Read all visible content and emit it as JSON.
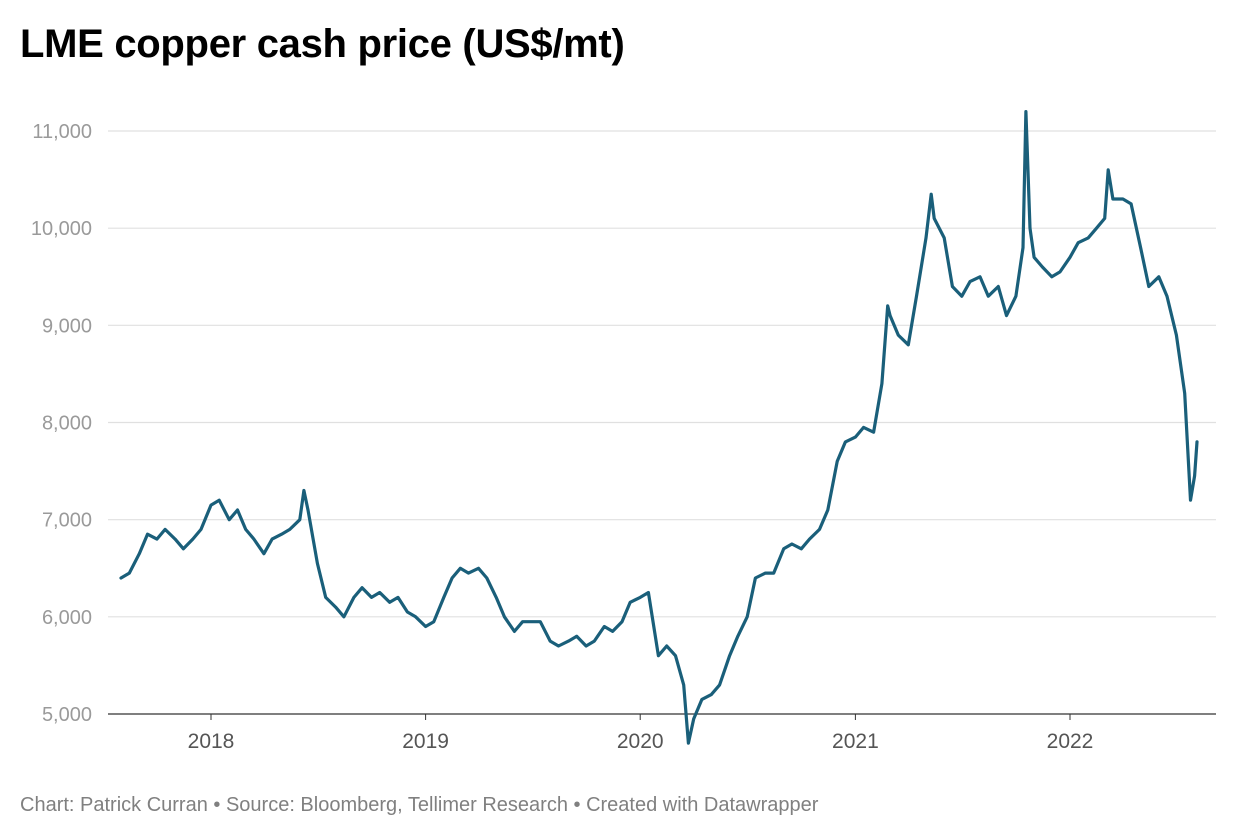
{
  "chart_data": {
    "type": "line",
    "title": "LME copper cash price (US$/mt)",
    "xlabel": "",
    "ylabel": "",
    "ylim": [
      5000,
      11000
    ],
    "y_ticks": [
      "11,000",
      "10,000",
      "9,000",
      "8,000",
      "7,000",
      "6,000",
      "5,000"
    ],
    "x_ticks": [
      "2018",
      "2019",
      "2020",
      "2021",
      "2022"
    ],
    "grid": true,
    "line_color": "#1a5f7a",
    "series": [
      {
        "x": [
          "2017-08-01",
          "2017-08-15",
          "2017-09-01",
          "2017-09-15",
          "2017-10-01",
          "2017-10-15",
          "2017-11-01",
          "2017-11-15",
          "2017-12-01",
          "2017-12-15",
          "2018-01-01",
          "2018-01-15",
          "2018-02-01",
          "2018-02-15",
          "2018-03-01",
          "2018-03-15",
          "2018-04-01",
          "2018-04-15",
          "2018-05-01",
          "2018-05-15",
          "2018-06-01",
          "2018-06-08",
          "2018-06-15",
          "2018-07-01",
          "2018-07-15",
          "2018-08-01",
          "2018-08-15",
          "2018-09-01",
          "2018-09-15",
          "2018-10-01",
          "2018-10-15",
          "2018-11-01",
          "2018-11-15",
          "2018-12-01",
          "2018-12-15",
          "2019-01-01",
          "2019-01-15",
          "2019-02-01",
          "2019-02-15",
          "2019-03-01",
          "2019-03-15",
          "2019-04-01",
          "2019-04-15",
          "2019-05-01",
          "2019-05-15",
          "2019-06-01",
          "2019-06-15",
          "2019-07-01",
          "2019-07-15",
          "2019-08-01",
          "2019-08-15",
          "2019-09-01",
          "2019-09-15",
          "2019-10-01",
          "2019-10-15",
          "2019-11-01",
          "2019-11-15",
          "2019-12-01",
          "2019-12-15",
          "2020-01-01",
          "2020-01-15",
          "2020-02-01",
          "2020-02-15",
          "2020-03-01",
          "2020-03-15",
          "2020-03-23",
          "2020-04-01",
          "2020-04-15",
          "2020-05-01",
          "2020-05-15",
          "2020-06-01",
          "2020-06-15",
          "2020-07-01",
          "2020-07-15",
          "2020-08-01",
          "2020-08-15",
          "2020-09-01",
          "2020-09-15",
          "2020-10-01",
          "2020-10-15",
          "2020-11-01",
          "2020-11-15",
          "2020-12-01",
          "2020-12-15",
          "2021-01-01",
          "2021-01-15",
          "2021-02-01",
          "2021-02-15",
          "2021-02-25",
          "2021-03-01",
          "2021-03-15",
          "2021-04-01",
          "2021-04-15",
          "2021-05-01",
          "2021-05-10",
          "2021-05-15",
          "2021-06-01",
          "2021-06-15",
          "2021-07-01",
          "2021-07-15",
          "2021-08-01",
          "2021-08-15",
          "2021-09-01",
          "2021-09-15",
          "2021-10-01",
          "2021-10-13",
          "2021-10-18",
          "2021-10-25",
          "2021-11-01",
          "2021-11-15",
          "2021-12-01",
          "2021-12-15",
          "2022-01-01",
          "2022-01-15",
          "2022-02-01",
          "2022-02-15",
          "2022-03-01",
          "2022-03-07",
          "2022-03-15",
          "2022-04-01",
          "2022-04-15",
          "2022-05-01",
          "2022-05-15",
          "2022-06-01",
          "2022-06-15",
          "2022-07-01",
          "2022-07-15",
          "2022-07-25",
          "2022-08-01",
          "2022-08-05"
        ],
        "values": [
          6400,
          6450,
          6650,
          6850,
          6800,
          6900,
          6800,
          6700,
          6800,
          6900,
          7150,
          7200,
          7000,
          7100,
          6900,
          6800,
          6650,
          6800,
          6850,
          6900,
          7000,
          7300,
          7100,
          6550,
          6200,
          6100,
          6000,
          6200,
          6300,
          6200,
          6250,
          6150,
          6200,
          6050,
          6000,
          5900,
          5950,
          6200,
          6400,
          6500,
          6450,
          6500,
          6400,
          6200,
          6000,
          5850,
          5950,
          5950,
          5950,
          5750,
          5700,
          5750,
          5800,
          5700,
          5750,
          5900,
          5850,
          5950,
          6150,
          6200,
          6250,
          5600,
          5700,
          5600,
          5300,
          4700,
          4950,
          5150,
          5200,
          5300,
          5600,
          5800,
          6000,
          6400,
          6450,
          6450,
          6700,
          6750,
          6700,
          6800,
          6900,
          7100,
          7600,
          7800,
          7850,
          7950,
          7900,
          8400,
          9200,
          9100,
          8900,
          8800,
          9300,
          9900,
          10350,
          10100,
          9900,
          9400,
          9300,
          9450,
          9500,
          9300,
          9400,
          9100,
          9300,
          9800,
          11200,
          10000,
          9700,
          9600,
          9500,
          9550,
          9700,
          9850,
          9900,
          10000,
          10100,
          10600,
          10300,
          10300,
          10250,
          9800,
          9400,
          9500,
          9300,
          8900,
          8300,
          7200,
          7450,
          7800
        ]
      }
    ]
  },
  "footer": "Chart: Patrick Curran • Source: Bloomberg, Tellimer Research • Created with Datawrapper"
}
